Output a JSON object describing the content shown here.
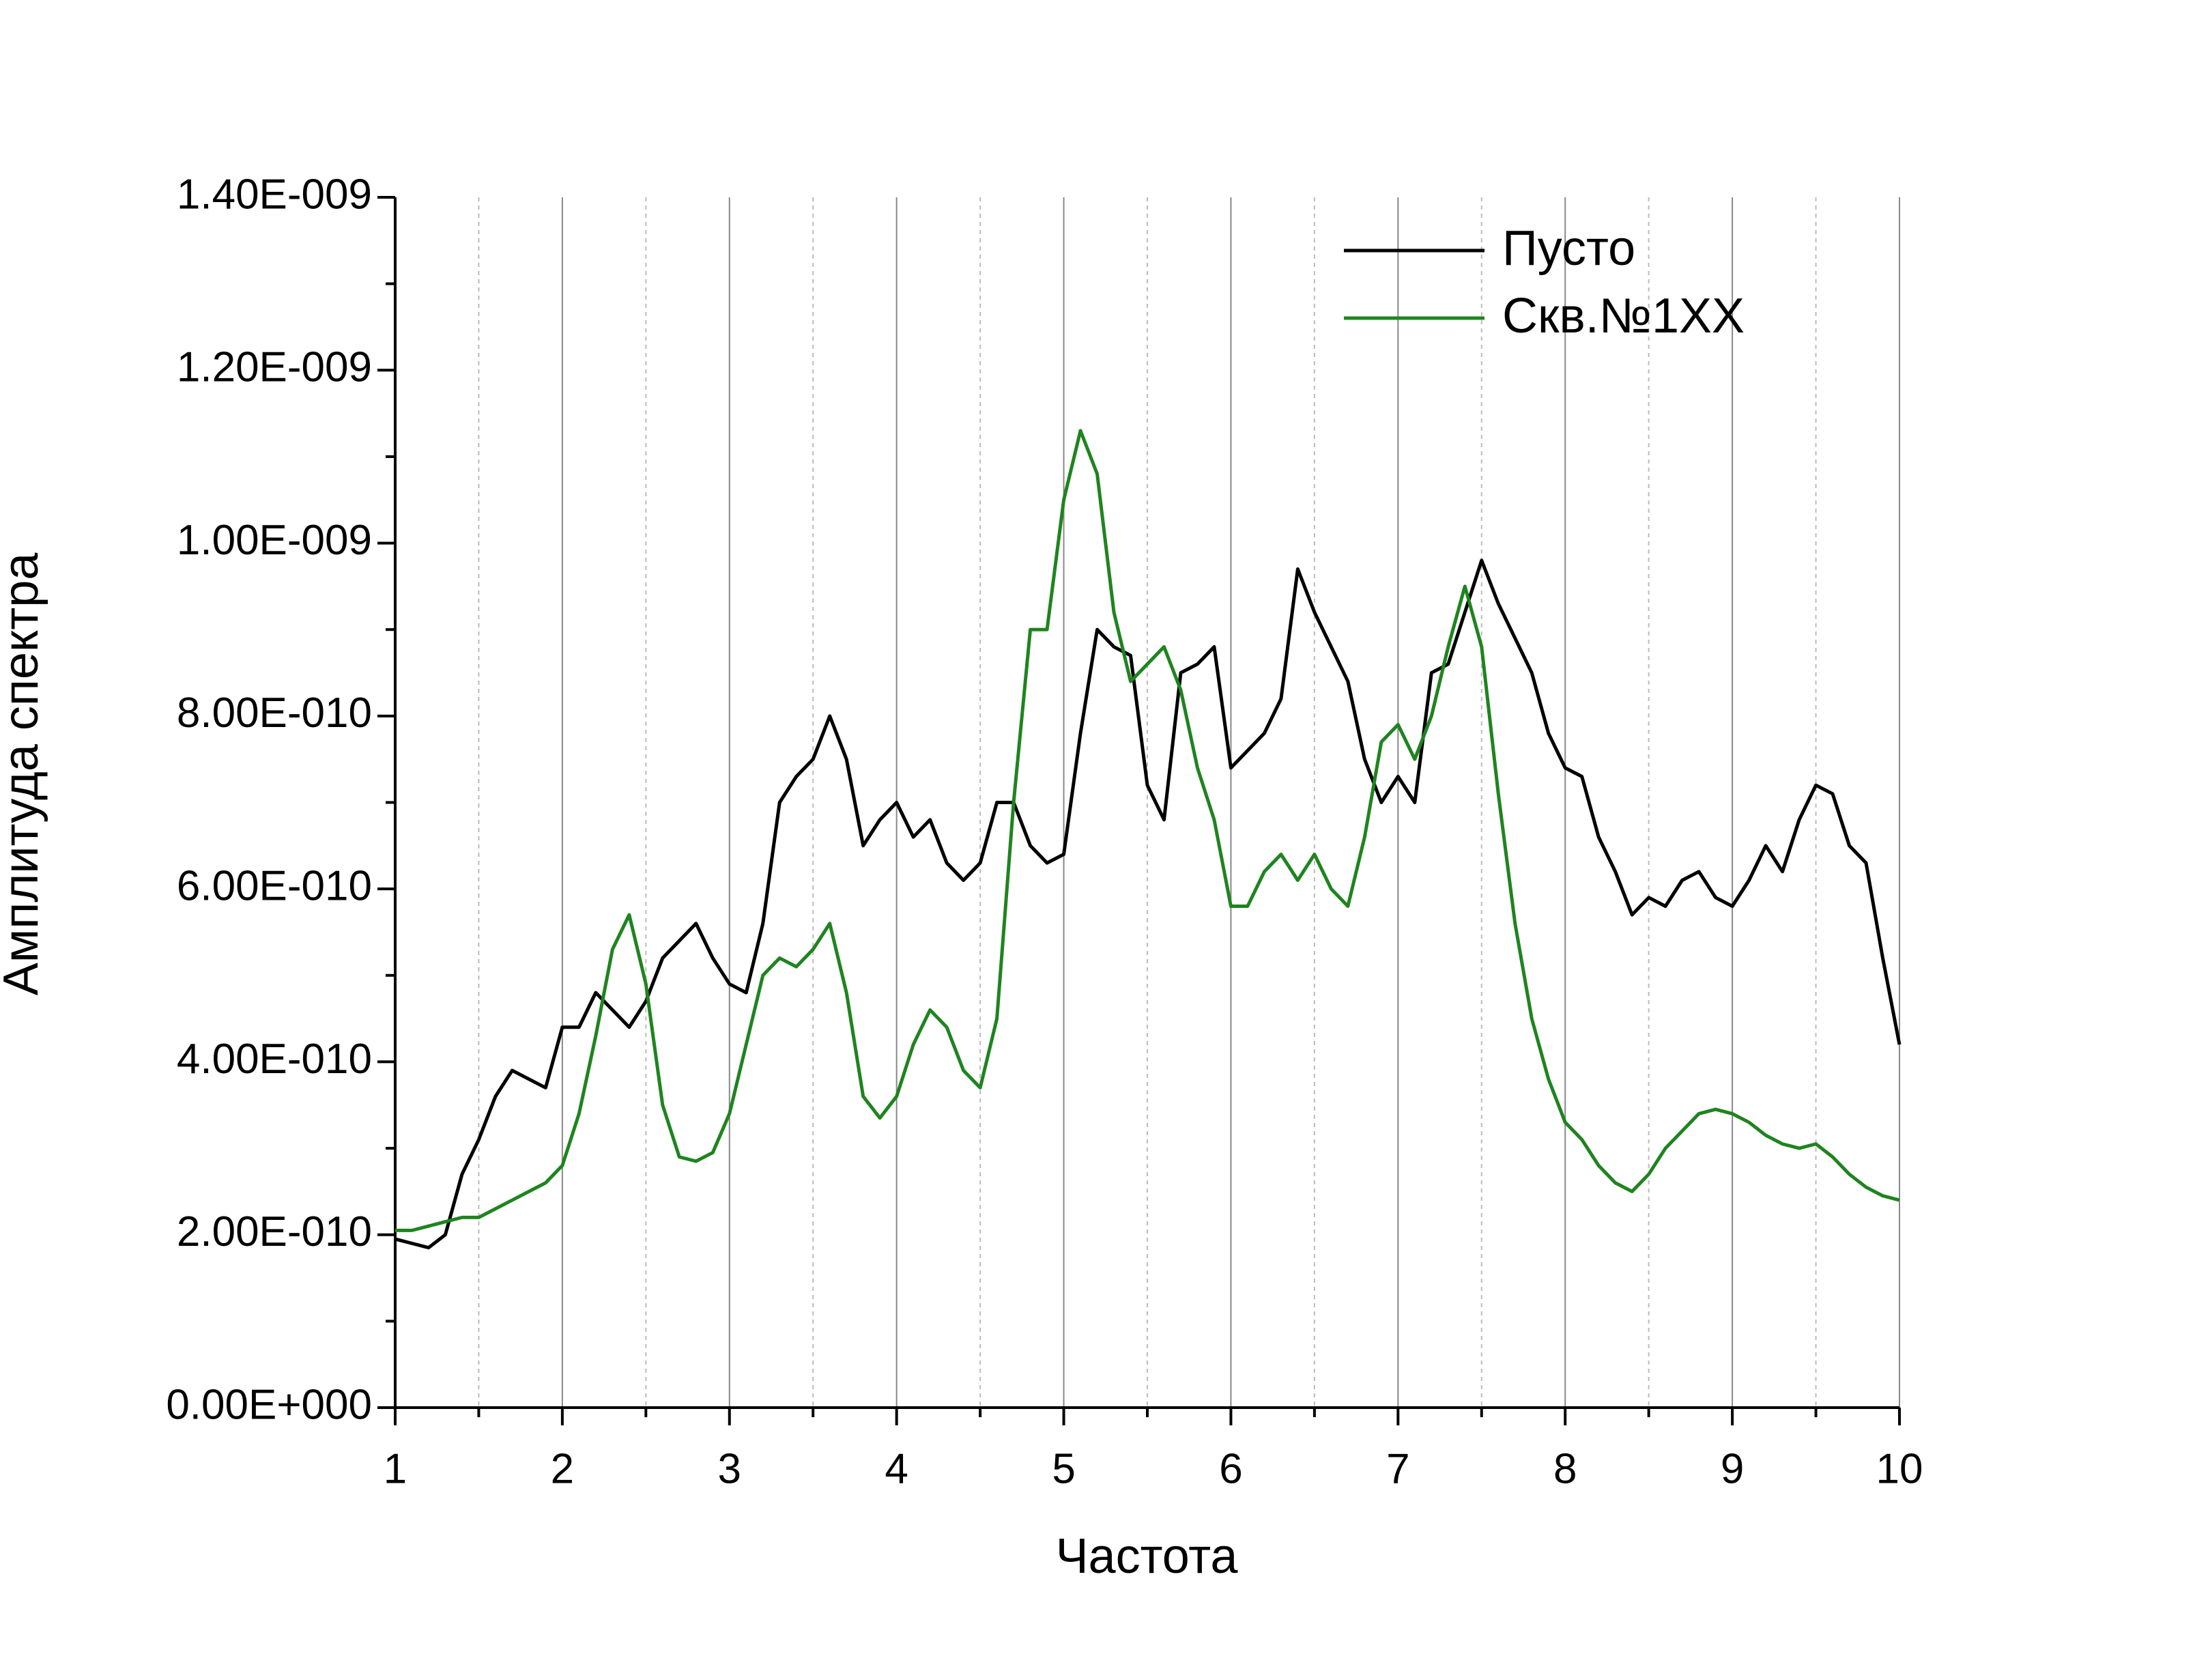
{
  "chart_data": {
    "type": "line",
    "x_label": "Частота",
    "y_label": "Амплитуда спектра",
    "xlim": [
      1,
      10
    ],
    "xticks": [
      1,
      2,
      3,
      4,
      5,
      6,
      7,
      8,
      9,
      10
    ],
    "xminorticks": [
      1.5,
      2.5,
      3.5,
      4.5,
      5.5,
      6.5,
      7.5,
      8.5,
      9.5
    ],
    "ylim": [
      0,
      1.4e-09
    ],
    "yticks": [
      {
        "value": 0,
        "label": "0.00E+000"
      },
      {
        "value": 2e-10,
        "label": "2.00E-010"
      },
      {
        "value": 4e-10,
        "label": "4.00E-010"
      },
      {
        "value": 6e-10,
        "label": "6.00E-010"
      },
      {
        "value": 8e-10,
        "label": "8.00E-010"
      },
      {
        "value": 1e-09,
        "label": "1.00E-009"
      },
      {
        "value": 1.2e-09,
        "label": "1.20E-009"
      },
      {
        "value": 1.4e-09,
        "label": "1.40E-009"
      }
    ],
    "yminorticks": [
      1e-10,
      3e-10,
      5e-10,
      7e-10,
      9e-10,
      1.1e-09,
      1.3e-09
    ],
    "grid": true,
    "legend": "top right",
    "x": [
      1,
      1.1,
      1.2,
      1.3,
      1.4,
      1.5,
      1.6,
      1.7,
      1.8,
      1.9,
      2,
      2.1,
      2.2,
      2.3,
      2.4,
      2.5,
      2.6,
      2.7,
      2.8,
      2.9,
      3,
      3.1,
      3.2,
      3.3,
      3.4,
      3.5,
      3.6,
      3.7,
      3.8,
      3.9,
      4,
      4.1,
      4.2,
      4.3,
      4.4,
      4.5,
      4.6,
      4.7,
      4.8,
      4.9,
      5,
      5.1,
      5.2,
      5.3,
      5.4,
      5.5,
      5.6,
      5.7,
      5.8,
      5.9,
      6,
      6.1,
      6.2,
      6.3,
      6.4,
      6.5,
      6.6,
      6.7,
      6.8,
      6.9,
      7,
      7.1,
      7.2,
      7.3,
      7.4,
      7.5,
      7.6,
      7.7,
      7.8,
      7.9,
      8,
      8.1,
      8.2,
      8.3,
      8.4,
      8.5,
      8.6,
      8.7,
      8.8,
      8.9,
      9,
      9.1,
      9.2,
      9.3,
      9.4,
      9.5,
      9.6,
      9.7,
      9.8,
      9.9,
      10
    ],
    "series": [
      {
        "name": "Пусто",
        "color": "#000000",
        "values": [
          1.95e-10,
          1.9e-10,
          1.85e-10,
          2e-10,
          2.7e-10,
          3.1e-10,
          3.6e-10,
          3.9e-10,
          3.8e-10,
          3.7e-10,
          4.4e-10,
          4.4e-10,
          4.8e-10,
          4.6e-10,
          4.4e-10,
          4.7e-10,
          5.2e-10,
          5.4e-10,
          5.6e-10,
          5.2e-10,
          4.9e-10,
          4.8e-10,
          5.6e-10,
          7e-10,
          7.3e-10,
          7.5e-10,
          8e-10,
          7.5e-10,
          6.5e-10,
          6.8e-10,
          7e-10,
          6.6e-10,
          6.8e-10,
          6.3e-10,
          6.1e-10,
          6.3e-10,
          7e-10,
          7e-10,
          6.5e-10,
          6.3e-10,
          6.4e-10,
          7.8e-10,
          9e-10,
          8.8e-10,
          8.7e-10,
          7.2e-10,
          6.8e-10,
          8.5e-10,
          8.6e-10,
          8.8e-10,
          7.4e-10,
          7.6e-10,
          7.8e-10,
          8.2e-10,
          9.7e-10,
          9.2e-10,
          8.8e-10,
          8.4e-10,
          7.5e-10,
          7e-10,
          7.3e-10,
          7e-10,
          8.5e-10,
          8.6e-10,
          9.2e-10,
          9.8e-10,
          9.3e-10,
          8.9e-10,
          8.5e-10,
          7.8e-10,
          7.4e-10,
          7.3e-10,
          6.6e-10,
          6.2e-10,
          5.7e-10,
          5.9e-10,
          5.8e-10,
          6.1e-10,
          6.2e-10,
          5.9e-10,
          5.8e-10,
          6.1e-10,
          6.5e-10,
          6.2e-10,
          6.8e-10,
          7.2e-10,
          7.1e-10,
          6.5e-10,
          6.3e-10,
          5.2e-10,
          4.2e-10
        ]
      },
      {
        "name": "Скв.№1XX",
        "color": "#1f841f",
        "values": [
          2.05e-10,
          2.05e-10,
          2.1e-10,
          2.15e-10,
          2.2e-10,
          2.2e-10,
          2.3e-10,
          2.4e-10,
          2.5e-10,
          2.6e-10,
          2.8e-10,
          3.4e-10,
          4.3e-10,
          5.3e-10,
          5.7e-10,
          4.9e-10,
          3.5e-10,
          2.9e-10,
          2.85e-10,
          2.95e-10,
          3.4e-10,
          4.2e-10,
          5e-10,
          5.2e-10,
          5.1e-10,
          5.3e-10,
          5.6e-10,
          4.8e-10,
          3.6e-10,
          3.35e-10,
          3.6e-10,
          4.2e-10,
          4.6e-10,
          4.4e-10,
          3.9e-10,
          3.7e-10,
          4.5e-10,
          7e-10,
          9e-10,
          9e-10,
          1.05e-09,
          1.13e-09,
          1.08e-09,
          9.2e-10,
          8.4e-10,
          8.6e-10,
          8.8e-10,
          8.3e-10,
          7.4e-10,
          6.8e-10,
          5.8e-10,
          5.8e-10,
          6.2e-10,
          6.4e-10,
          6.1e-10,
          6.4e-10,
          6e-10,
          5.8e-10,
          6.6e-10,
          7.7e-10,
          7.9e-10,
          7.5e-10,
          8e-10,
          8.8e-10,
          9.5e-10,
          8.8e-10,
          7.1e-10,
          5.6e-10,
          4.5e-10,
          3.8e-10,
          3.3e-10,
          3.1e-10,
          2.8e-10,
          2.6e-10,
          2.5e-10,
          2.7e-10,
          3e-10,
          3.2e-10,
          3.4e-10,
          3.45e-10,
          3.4e-10,
          3.3e-10,
          3.15e-10,
          3.05e-10,
          3e-10,
          3.05e-10,
          2.9e-10,
          2.7e-10,
          2.55e-10,
          2.45e-10,
          2.4e-10
        ]
      }
    ]
  }
}
